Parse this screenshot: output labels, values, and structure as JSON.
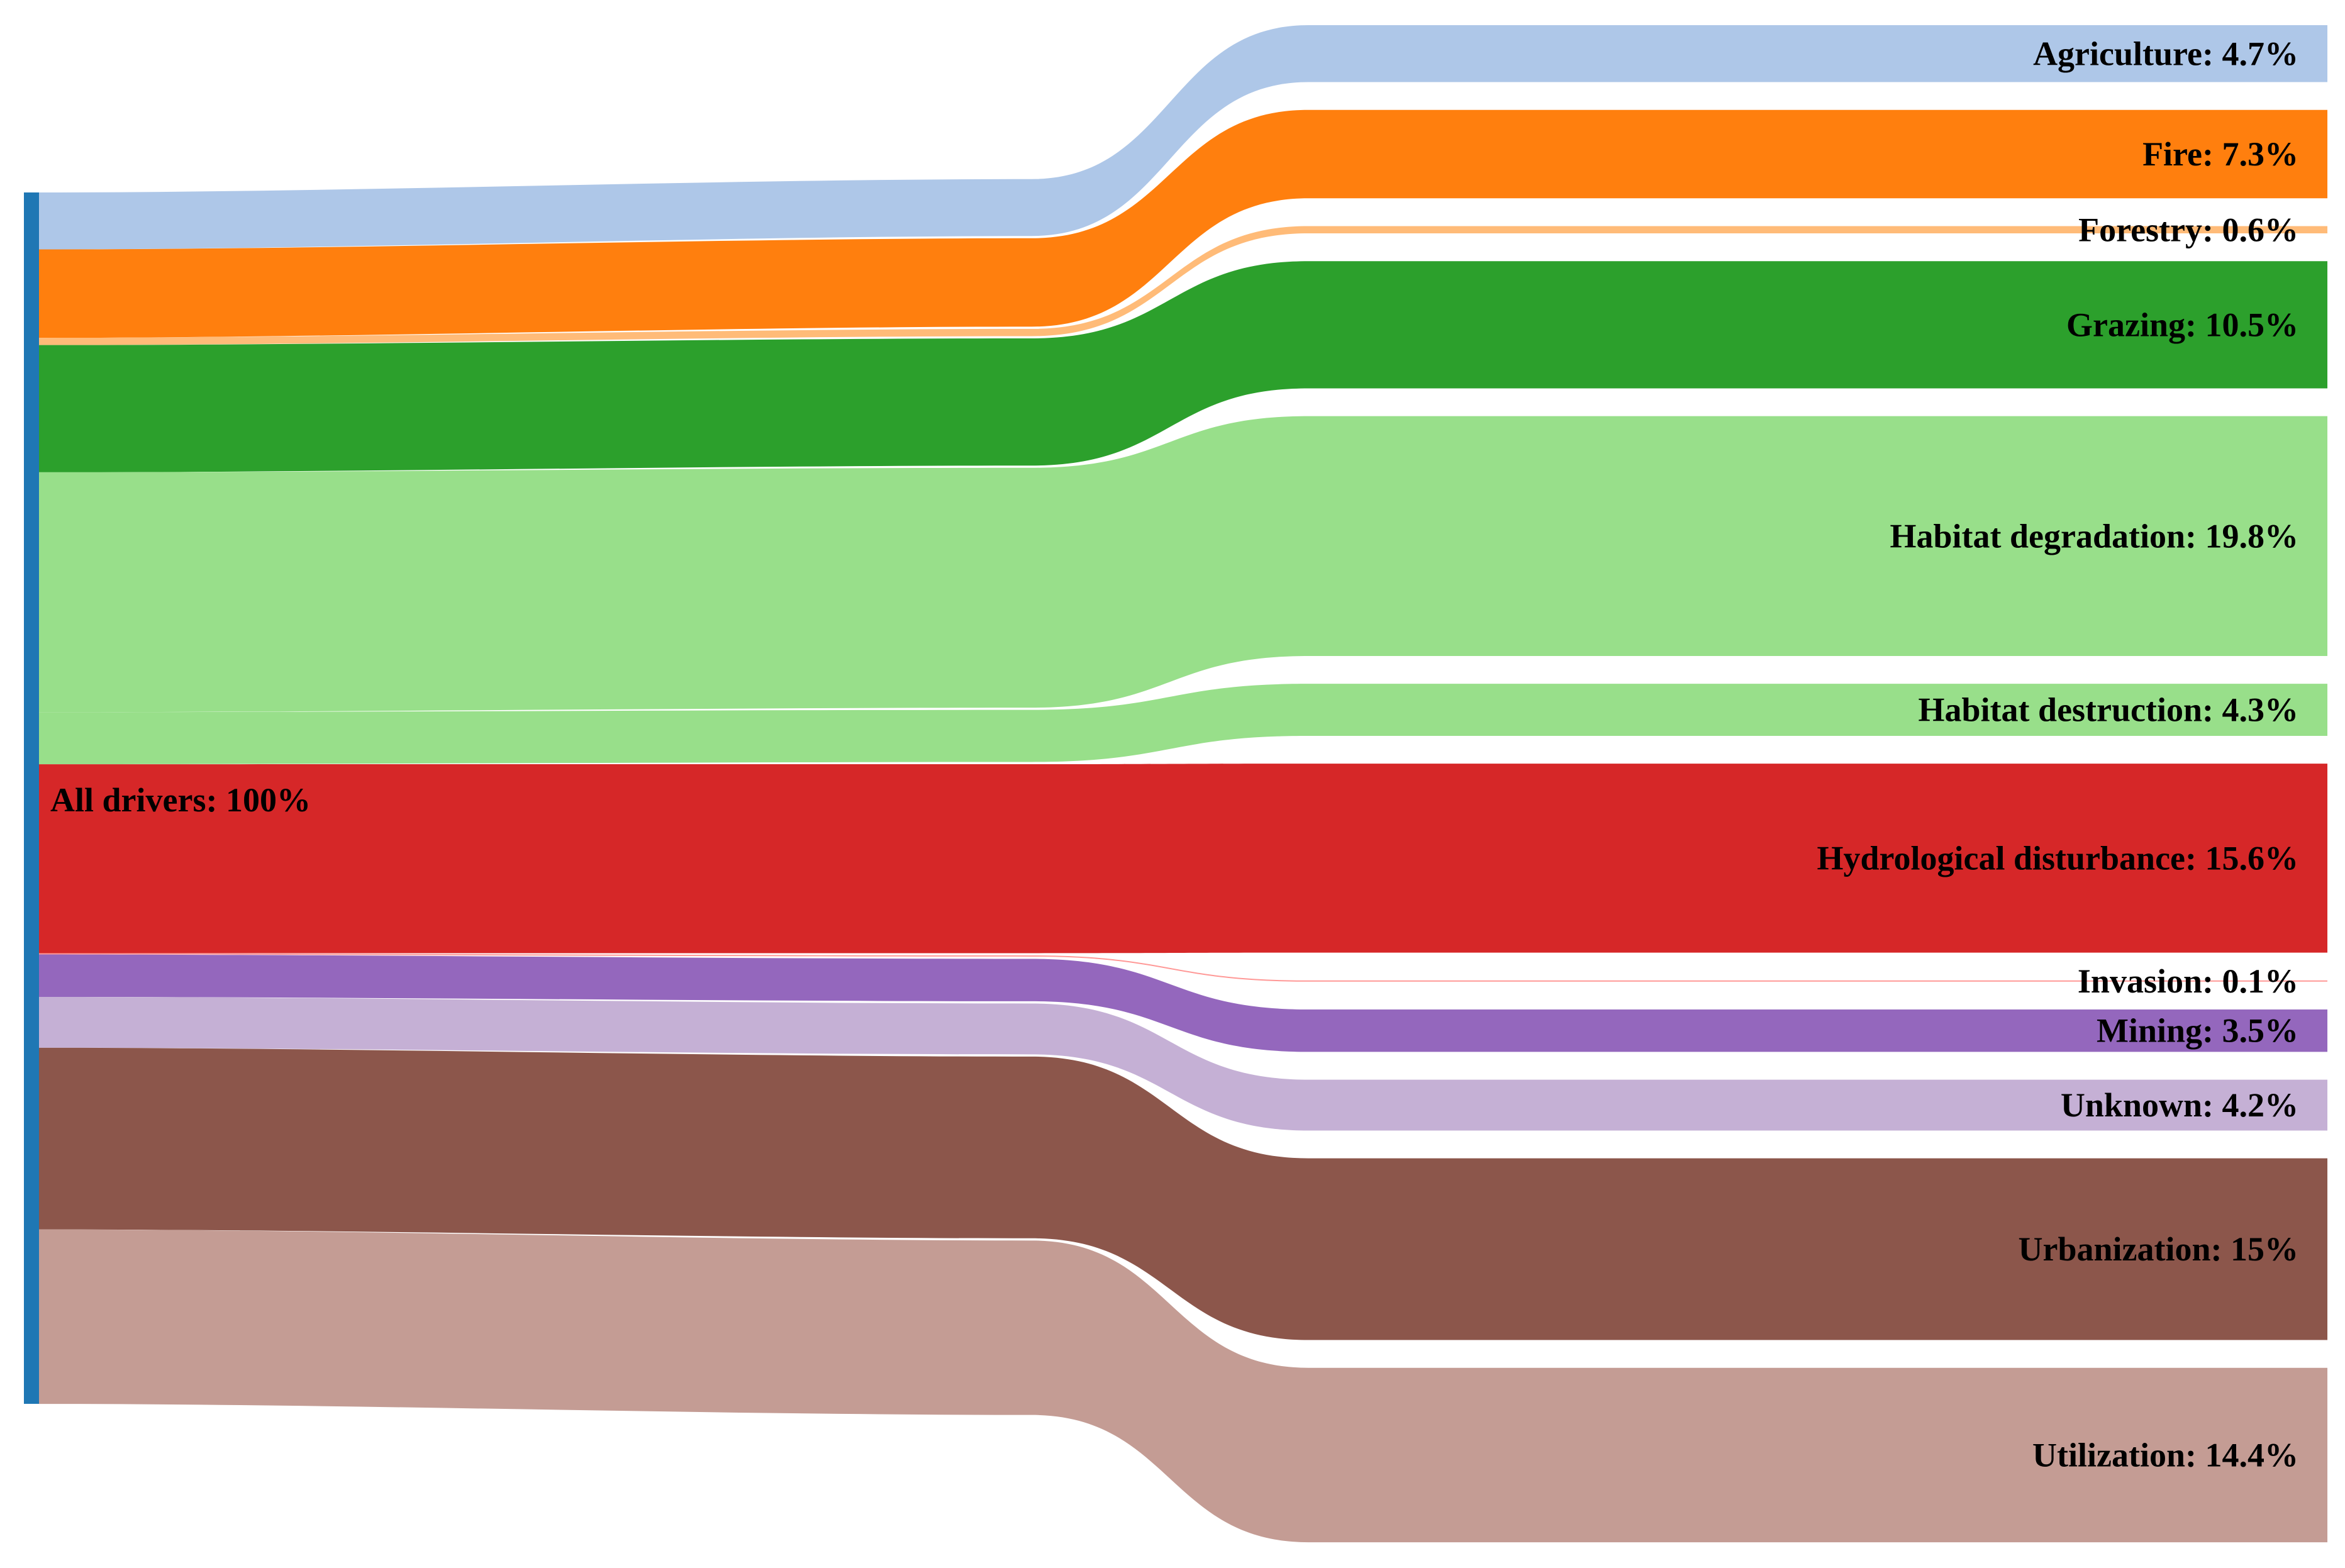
{
  "chart_data": {
    "type": "sankey",
    "source": {
      "label": "All drivers: 100%",
      "name": "All drivers",
      "value": 100,
      "color": "#1f77b4"
    },
    "targets": [
      {
        "name": "Agriculture",
        "label": "Agriculture: 4.7%",
        "value": 4.7,
        "color": "#aec7e8"
      },
      {
        "name": "Fire",
        "label": "Fire: 7.3%",
        "value": 7.3,
        "color": "#ff7f0e"
      },
      {
        "name": "Forestry",
        "label": "Forestry: 0.6%",
        "value": 0.6,
        "color": "#ffbb78"
      },
      {
        "name": "Grazing",
        "label": "Grazing: 10.5%",
        "value": 10.5,
        "color": "#2ca02c"
      },
      {
        "name": "Habitat degradation",
        "label": "Habitat degradation: 19.8%",
        "value": 19.8,
        "color": "#98df8a"
      },
      {
        "name": "Habitat destruction",
        "label": "Habitat destruction: 4.3%",
        "value": 4.3,
        "color": "#98df8a"
      },
      {
        "name": "Hydrological disturbance",
        "label": "Hydrological disturbance: 15.6%",
        "value": 15.6,
        "color": "#d62728"
      },
      {
        "name": "Invasion",
        "label": "Invasion: 0.1%",
        "value": 0.1,
        "color": "#ff9896"
      },
      {
        "name": "Mining",
        "label": "Mining: 3.5%",
        "value": 3.5,
        "color": "#9467bd"
      },
      {
        "name": "Unknown",
        "label": "Unknown: 4.2%",
        "value": 4.2,
        "color": "#c5b0d5"
      },
      {
        "name": "Urbanization",
        "label": "Urbanization: 15%",
        "value": 15,
        "color": "#8c564b"
      },
      {
        "name": "Utilization",
        "label": "Utilization: 14.4%",
        "value": 14.4,
        "color": "#c49c94"
      }
    ]
  }
}
